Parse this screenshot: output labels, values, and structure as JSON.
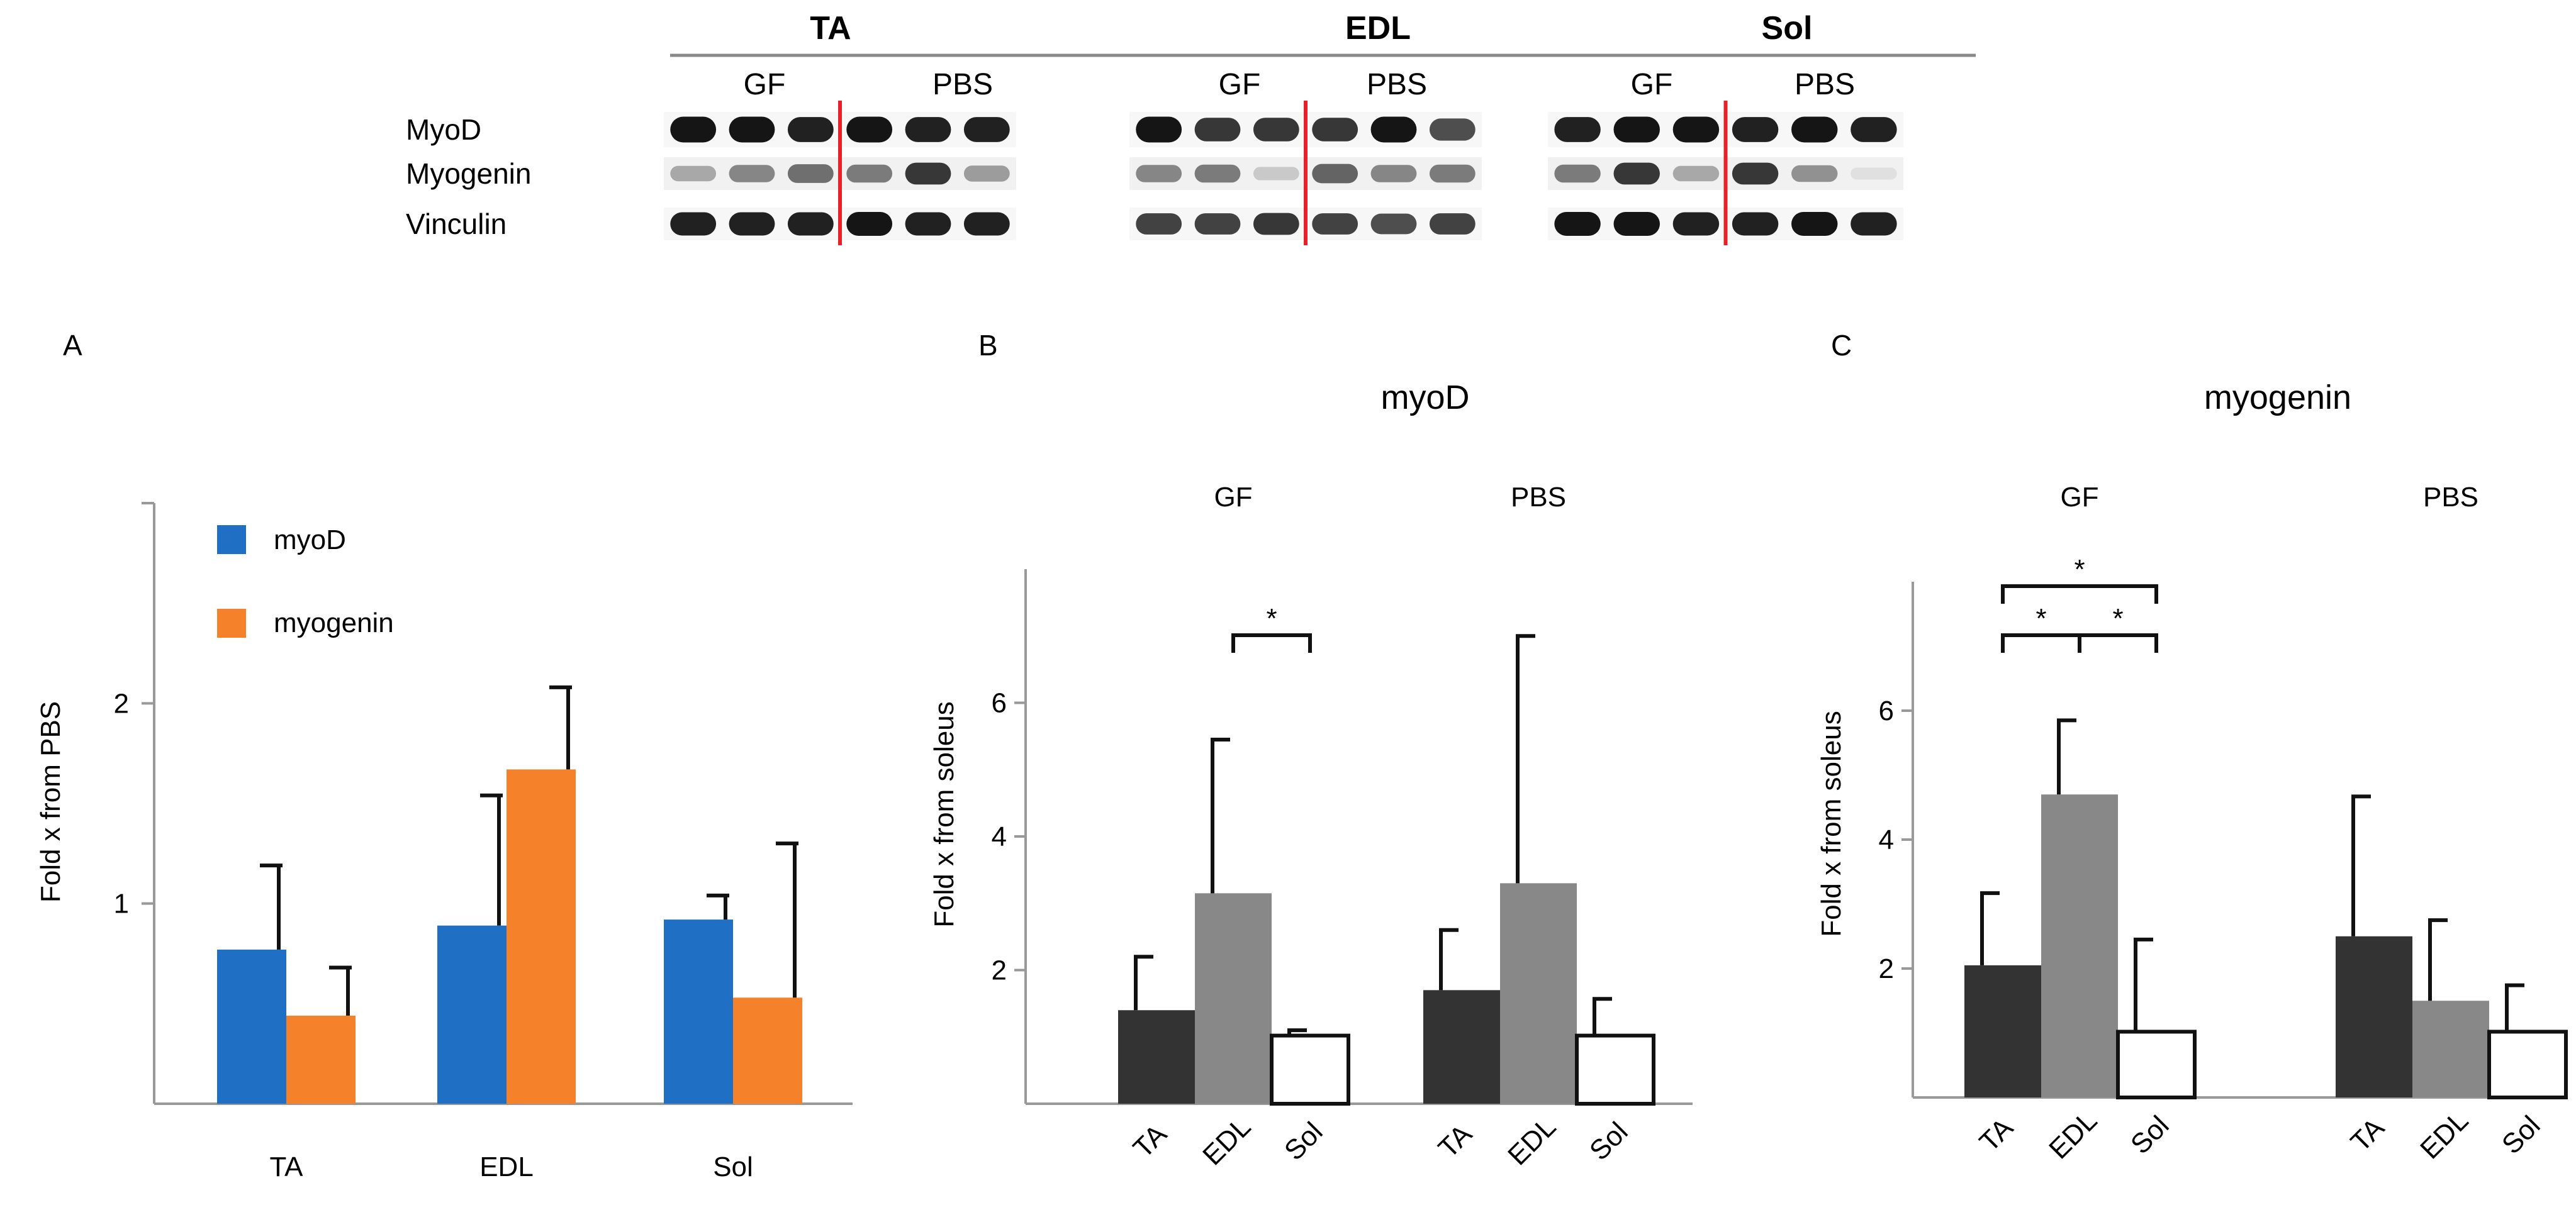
{
  "blot": {
    "muscles": [
      {
        "name": "TA",
        "groups": [
          "GF",
          "PBS"
        ]
      },
      {
        "name": "EDL",
        "groups": [
          "GF",
          "PBS"
        ]
      },
      {
        "name": "Sol",
        "groups": [
          "GF",
          "PBS"
        ]
      }
    ],
    "row_labels": [
      "MyoD",
      "Myogenin",
      "Vinculin"
    ],
    "divider_color": "#e8202a",
    "band_intensity": [
      [
        [
          0.95,
          0.95,
          0.9,
          0.95,
          0.9,
          0.9
        ],
        [
          0.95,
          0.8,
          0.8,
          0.8,
          0.95,
          0.7
        ],
        [
          0.9,
          0.95,
          0.95,
          0.9,
          0.95,
          0.9
        ]
      ],
      [
        [
          0.3,
          0.45,
          0.55,
          0.5,
          0.8,
          0.35
        ],
        [
          0.45,
          0.5,
          0.15,
          0.6,
          0.45,
          0.5
        ],
        [
          0.5,
          0.8,
          0.3,
          0.8,
          0.4,
          0.05
        ]
      ],
      [
        [
          0.9,
          0.9,
          0.9,
          0.95,
          0.9,
          0.9
        ],
        [
          0.75,
          0.75,
          0.8,
          0.75,
          0.7,
          0.75
        ],
        [
          0.95,
          0.95,
          0.9,
          0.9,
          0.95,
          0.9
        ]
      ]
    ]
  },
  "chart_data": [
    {
      "panel": "A",
      "type": "bar",
      "title": "",
      "categories": [
        "TA",
        "EDL",
        "Sol"
      ],
      "series": [
        {
          "name": "myoD",
          "color": "#1f6fc5",
          "values": [
            0.77,
            0.89,
            0.92
          ],
          "errors": [
            0.42,
            0.65,
            0.12
          ]
        },
        {
          "name": "myogenin",
          "color": "#f5822a",
          "values": [
            0.44,
            1.67,
            0.53
          ],
          "errors": [
            0.24,
            0.41,
            0.77
          ]
        }
      ],
      "ylabel": "Fold x from PBS",
      "ylim": [
        0,
        3
      ],
      "yticks": [
        1,
        2
      ],
      "legend": "top-left"
    },
    {
      "panel": "B",
      "type": "bar",
      "title": "myoD",
      "groups": [
        "GF",
        "PBS"
      ],
      "categories": [
        "TA",
        "EDL",
        "Sol"
      ],
      "bar_colors": [
        "#333333",
        "#888888",
        "#ffffff"
      ],
      "values": [
        [
          1.4,
          3.15,
          1.02
        ],
        [
          1.7,
          3.3,
          1.02
        ]
      ],
      "errors": [
        [
          0.8,
          2.3,
          0.08
        ],
        [
          0.9,
          3.7,
          0.55
        ]
      ],
      "significance": [
        {
          "group": 0,
          "from": 1,
          "to": 2,
          "label": "*"
        }
      ],
      "ylabel": "Fold x from soleus",
      "ylim": [
        0,
        8
      ],
      "yticks": [
        2,
        4,
        6
      ]
    },
    {
      "panel": "C",
      "type": "bar",
      "title": "myogenin",
      "groups": [
        "GF",
        "PBS"
      ],
      "categories": [
        "TA",
        "EDL",
        "Sol"
      ],
      "bar_colors": [
        "#333333",
        "#888888",
        "#ffffff"
      ],
      "values": [
        [
          2.05,
          4.7,
          1.02
        ],
        [
          2.5,
          1.5,
          1.02
        ]
      ],
      "errors": [
        [
          1.12,
          1.15,
          1.43
        ],
        [
          2.17,
          1.25,
          0.72
        ]
      ],
      "significance": [
        {
          "group": 0,
          "from": 0,
          "to": 1,
          "label": "*"
        },
        {
          "group": 0,
          "from": 1,
          "to": 2,
          "label": "*"
        },
        {
          "group": 0,
          "from": 0,
          "to": 2,
          "label": "*"
        }
      ],
      "ylabel": "Fold x from soleus",
      "ylim": [
        0,
        8
      ],
      "yticks": [
        2,
        4,
        6
      ]
    }
  ]
}
